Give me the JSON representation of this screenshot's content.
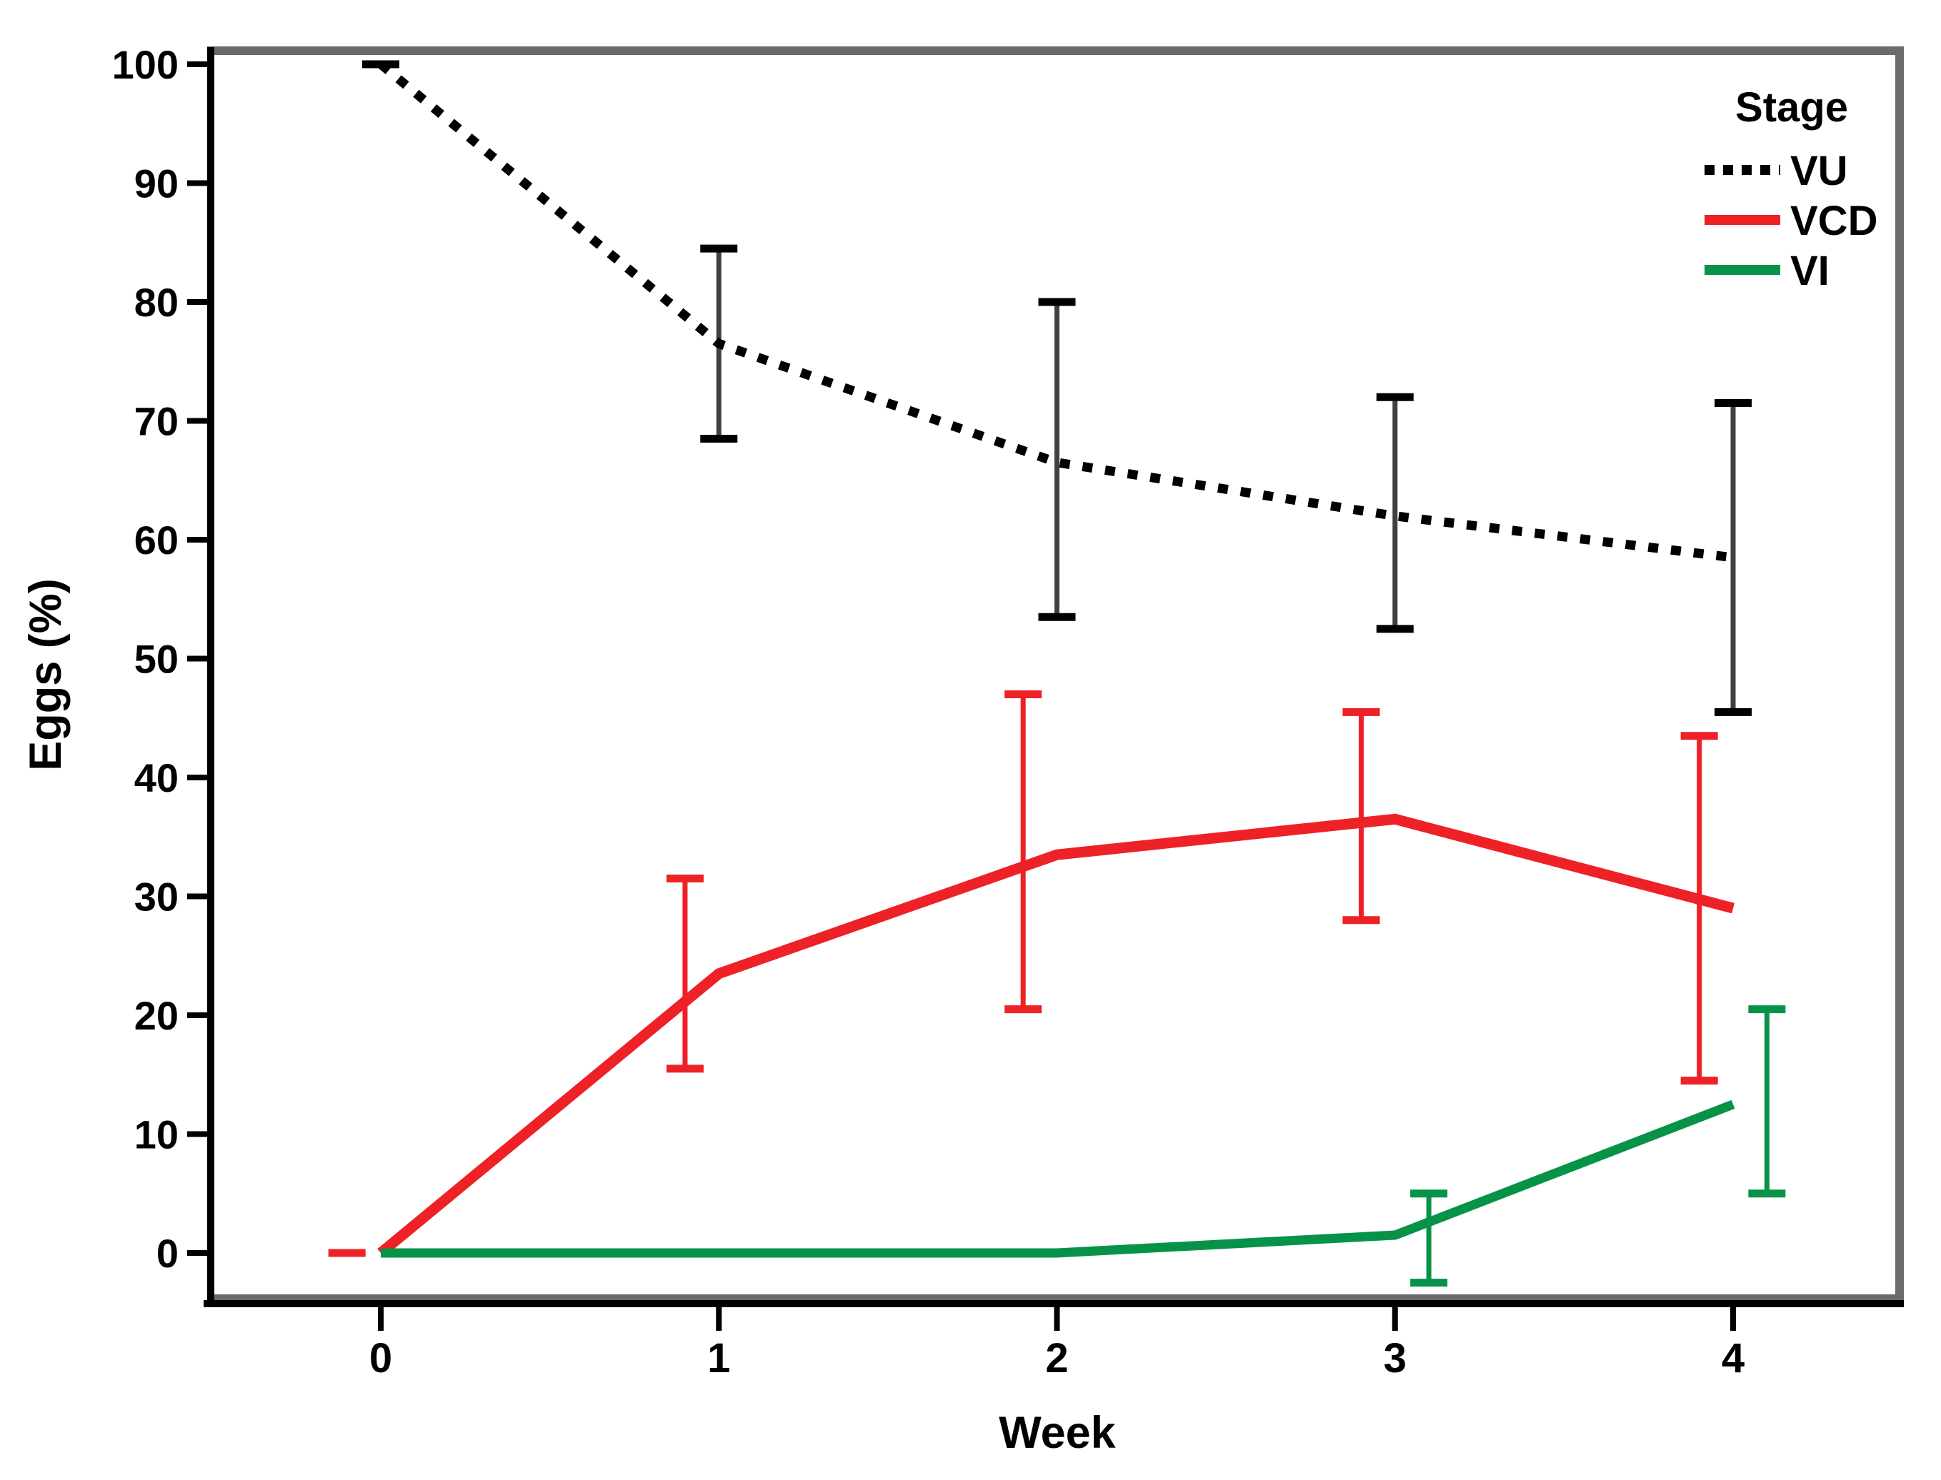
{
  "figure": {
    "background": "#ffffff",
    "frame_color": "#6b6b6b",
    "axis_color": "#000000"
  },
  "chart_data": {
    "type": "line",
    "title": "",
    "xlabel": "Week",
    "ylabel": "Eggs (%)",
    "x": [
      0,
      1,
      2,
      3,
      4
    ],
    "x_ticks": [
      "0",
      "1",
      "2",
      "3",
      "4"
    ],
    "y_ticks": [
      "0",
      "10",
      "20",
      "30",
      "40",
      "50",
      "60",
      "70",
      "80",
      "90",
      "100"
    ],
    "y_tick_values": [
      0,
      10,
      20,
      30,
      40,
      50,
      60,
      70,
      80,
      90,
      100
    ],
    "xlim": [
      -0.5,
      4.5
    ],
    "ylim": [
      -4,
      101.5
    ],
    "grid": false,
    "legend": {
      "title": "Stage",
      "position": "top-right-inside"
    },
    "series": [
      {
        "name": "VU",
        "color": "#000000",
        "error_bar_line_color": "#404040",
        "style": "dotted",
        "line_width": 13,
        "values": [
          100,
          76.5,
          66.5,
          62,
          58.5
        ],
        "err_low": [
          100,
          68.5,
          53.5,
          52.5,
          45.5
        ],
        "err_high": [
          100,
          84.5,
          80,
          72,
          71.5
        ],
        "err_offset_weeks": 0
      },
      {
        "name": "VCD",
        "color": "#ee2126",
        "error_bar_line_color": "#ee2126",
        "style": "solid",
        "line_width": 15,
        "values": [
          0,
          23.5,
          33.5,
          36.5,
          29
        ],
        "err_low": [
          0,
          15.5,
          20.5,
          28,
          14.5
        ],
        "err_high": [
          0,
          31.5,
          47,
          45.5,
          43.5
        ],
        "err_offset_weeks": -0.1
      },
      {
        "name": "VI",
        "color": "#069347",
        "error_bar_line_color": "#069347",
        "style": "solid",
        "line_width": 13,
        "values": [
          0,
          0,
          0,
          1.5,
          12.5
        ],
        "err_low": [
          null,
          null,
          null,
          -2.5,
          5
        ],
        "err_high": [
          null,
          null,
          null,
          5,
          20.5
        ],
        "err_offset_weeks": 0.1
      }
    ]
  }
}
